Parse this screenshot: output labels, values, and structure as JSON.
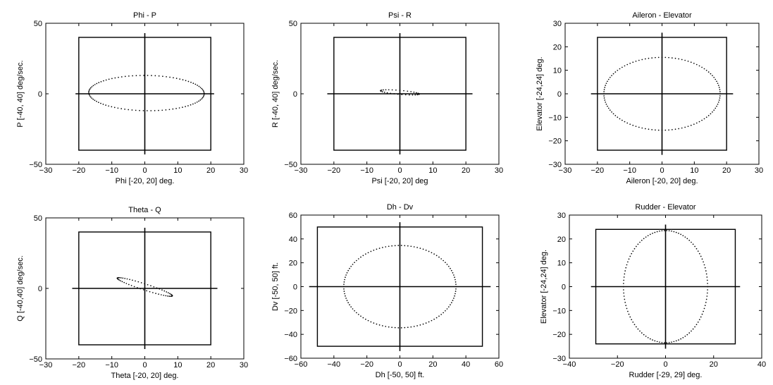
{
  "chart_data": [
    {
      "type": "scatter",
      "title": "Phi - P",
      "xlabel": "Phi [-20, 20] deg.",
      "ylabel": "P [-40, 40] deg/sec.",
      "xlim": [
        -30,
        30
      ],
      "ylim": [
        -50,
        50
      ],
      "xticks": [
        -30,
        -20,
        -10,
        0,
        10,
        20,
        30
      ],
      "yticks": [
        -50,
        0,
        50
      ],
      "xtick_labels": [
        "−30",
        "−20",
        "−10",
        "0",
        "10",
        "20",
        "30"
      ],
      "ytick_labels": [
        "−50",
        "0",
        "50"
      ],
      "grid": false,
      "limit_box": {
        "x": [
          -20,
          20
        ],
        "y": [
          -40,
          40
        ]
      },
      "axis_lines": {
        "x": [
          -21,
          21
        ],
        "y": [
          -43,
          43
        ]
      },
      "trajectory": {
        "shape": "ellipse",
        "cx": 0.5,
        "cy": 0.5,
        "rx": 17.5,
        "ry": 12.5,
        "tilt_deg": -3,
        "x_range": [
          -17,
          18
        ]
      }
    },
    {
      "type": "scatter",
      "title": "Psi - R",
      "xlabel": "Psi [-20, 20] deg",
      "ylabel": "R [-40, 40] deg/sec.",
      "xlim": [
        -30,
        30
      ],
      "ylim": [
        -50,
        50
      ],
      "xticks": [
        -30,
        -20,
        -10,
        0,
        10,
        20,
        30
      ],
      "yticks": [
        -50,
        0,
        50
      ],
      "xtick_labels": [
        "−30",
        "−20",
        "−10",
        "0",
        "10",
        "20",
        "30"
      ],
      "ytick_labels": [
        "−50",
        "0",
        "50"
      ],
      "grid": false,
      "limit_box": {
        "x": [
          -20,
          20
        ],
        "y": [
          -40,
          40
        ]
      },
      "axis_lines": {
        "x": [
          -22,
          22
        ],
        "y": [
          -43,
          43
        ]
      },
      "trajectory": {
        "shape": "ellipse",
        "cx": 0,
        "cy": 1,
        "rx": 6,
        "ry": 1.4,
        "tilt_deg": -12,
        "x_range": [
          -6,
          6
        ]
      }
    },
    {
      "type": "scatter",
      "title": "Aileron - Elevator",
      "xlabel": "Aileron [-20, 20] deg.",
      "ylabel": "Elevator [-24,24] deg.",
      "xlim": [
        -30,
        30
      ],
      "ylim": [
        -30,
        30
      ],
      "xticks": [
        -30,
        -20,
        -10,
        0,
        10,
        20,
        30
      ],
      "yticks": [
        -30,
        -20,
        -10,
        0,
        10,
        20,
        30
      ],
      "xtick_labels": [
        "−30",
        "−20",
        "−10",
        "0",
        "10",
        "20",
        "30"
      ],
      "ytick_labels": [
        "−30",
        "−20",
        "−10",
        "0",
        "10",
        "20",
        "30"
      ],
      "grid": false,
      "limit_box": {
        "x": [
          -20,
          20
        ],
        "y": [
          -24,
          24
        ]
      },
      "axis_lines": {
        "x": [
          -22,
          22
        ],
        "y": [
          -26,
          26
        ]
      },
      "trajectory": {
        "shape": "ellipse",
        "cx": 0,
        "cy": 0,
        "rx": 18,
        "ry": 15.5,
        "tilt_deg": 0,
        "x_range": [
          -18,
          18
        ]
      }
    },
    {
      "type": "scatter",
      "title": "Theta - Q",
      "xlabel": "Theta [-20, 20] deg.",
      "ylabel": "Q [-40,40] deg/sec.",
      "xlim": [
        -30,
        30
      ],
      "ylim": [
        -50,
        50
      ],
      "xticks": [
        -30,
        -20,
        -10,
        0,
        10,
        20,
        30
      ],
      "yticks": [
        -50,
        0,
        50
      ],
      "xtick_labels": [
        "−30",
        "−20",
        "−10",
        "0",
        "10",
        "20",
        "30"
      ],
      "ytick_labels": [
        "−50",
        "0",
        "50"
      ],
      "grid": false,
      "limit_box": {
        "x": [
          -20,
          20
        ],
        "y": [
          -40,
          40
        ]
      },
      "axis_lines": {
        "x": [
          -22,
          22
        ],
        "y": [
          -43,
          43
        ]
      },
      "trajectory": {
        "shape": "ellipse",
        "cx": 0,
        "cy": 1,
        "rx": 10.5,
        "ry": 1.8,
        "tilt_deg": -38,
        "x_range": [
          -10,
          10
        ]
      }
    },
    {
      "type": "scatter",
      "title": "Dh - Dv",
      "xlabel": "Dh [-50, 50] ft.",
      "ylabel": "Dv [-50, 50] ft.",
      "xlim": [
        -60,
        60
      ],
      "ylim": [
        -60,
        60
      ],
      "xticks": [
        -60,
        -40,
        -20,
        0,
        20,
        40,
        60
      ],
      "yticks": [
        -60,
        -40,
        -20,
        0,
        20,
        40,
        60
      ],
      "xtick_labels": [
        "−60",
        "−40",
        "−20",
        "0",
        "20",
        "40",
        "60"
      ],
      "ytick_labels": [
        "−60",
        "−40",
        "−20",
        "0",
        "20",
        "40",
        "60"
      ],
      "grid": false,
      "limit_box": {
        "x": [
          -50,
          50
        ],
        "y": [
          -50,
          50
        ]
      },
      "axis_lines": {
        "x": [
          -55,
          55
        ],
        "y": [
          -54,
          54
        ]
      },
      "trajectory": {
        "shape": "ellipse",
        "cx": 0,
        "cy": 0,
        "rx": 34,
        "ry": 34.5,
        "tilt_deg": 0,
        "x_range": [
          -34,
          34
        ]
      }
    },
    {
      "type": "scatter",
      "title": "Rudder - Elevator",
      "xlabel": "Rudder [-29, 29] deg.",
      "ylabel": "Elevator [-24,24] deg.",
      "xlim": [
        -40,
        40
      ],
      "ylim": [
        -30,
        30
      ],
      "xticks": [
        -40,
        -20,
        0,
        20,
        40
      ],
      "yticks": [
        -30,
        -20,
        -10,
        0,
        10,
        20,
        30
      ],
      "xtick_labels": [
        "−40",
        "−20",
        "0",
        "20",
        "40"
      ],
      "ytick_labels": [
        "−30",
        "−20",
        "−10",
        "0",
        "10",
        "20",
        "30"
      ],
      "grid": false,
      "limit_box": {
        "x": [
          -29,
          29
        ],
        "y": [
          -24,
          24
        ]
      },
      "axis_lines": {
        "x": [
          -31,
          31
        ],
        "y": [
          -26,
          26
        ]
      },
      "trajectory": {
        "shape": "ellipse",
        "cx": 0,
        "cy": 0,
        "rx": 17.5,
        "ry": 23.5,
        "tilt_deg": 0,
        "x_range": [
          -17.5,
          17.5
        ]
      }
    }
  ]
}
